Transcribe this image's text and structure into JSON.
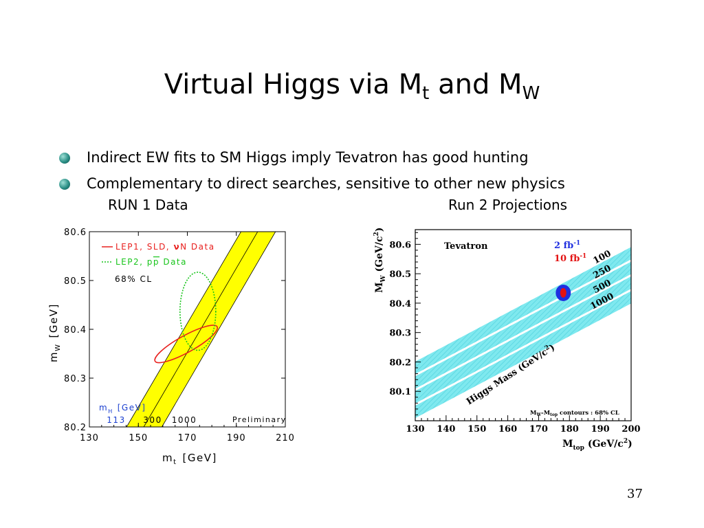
{
  "slide": {
    "title_main": "Virtual Higgs via M",
    "title_sub1": "t",
    "title_mid": " and M",
    "title_sub2": "W",
    "bullets": [
      {
        "text": "Indirect EW fits to SM Higgs imply Tevatron has good hunting",
        "icon": "teal-sphere-bullet-icon"
      },
      {
        "text": "Complementary to direct searches, sensitive to other new physics",
        "icon": "teal-sphere-bullet-icon"
      }
    ],
    "caption_left": "RUN 1 Data",
    "caption_right": "Run 2 Projections",
    "page_number": "37"
  },
  "chart_data": [
    {
      "type": "line",
      "xlabel_main": "m",
      "xlabel_sub": "t",
      "xlabel_unit": "[GeV]",
      "ylabel_main": "m",
      "ylabel_sub": "W",
      "ylabel_unit": "[GeV]",
      "xlim": [
        130,
        210
      ],
      "ylim": [
        80.2,
        80.6
      ],
      "xticks": [
        "130",
        "150",
        "170",
        "190",
        "210"
      ],
      "yticks": [
        "80.6",
        "80.5",
        "80.4",
        "80.3",
        "80.2"
      ],
      "legend": [
        {
          "label_pre": "LEP1, SLD, ",
          "label_nu": "ν",
          "label_post": "N Data",
          "color": "#e8201e",
          "style": "solid"
        },
        {
          "label_pre": "LEP2, p",
          "label_pbar": "p",
          "label_post": " Data",
          "color": "#17c41a",
          "style": "dotted"
        }
      ],
      "cl_label": "68% CL",
      "band_title_main": "m",
      "band_title_sub": "H",
      "band_title_unit": "[GeV]",
      "band_values": [
        "113",
        "300",
        "1000"
      ],
      "preliminary_label": "Preliminary",
      "band_color": "#ffff00",
      "band_lines": [
        {
          "mH": "113",
          "points": [
            [
              159.6,
              80.2
            ],
            [
              206.0,
              80.6
            ]
          ]
        },
        {
          "mH": "300",
          "points": [
            [
              152.2,
              80.2
            ],
            [
              198.7,
              80.6
            ]
          ]
        },
        {
          "mH": "1000",
          "points": [
            [
              145.2,
              80.2
            ],
            [
              191.9,
              80.6
            ]
          ]
        }
      ],
      "series": [
        {
          "name": "LEP1, SLD, νN Data",
          "shape": "ellipse",
          "center": [
            169.5,
            80.37
          ],
          "radii": [
            14.5,
            0.019
          ],
          "rotation_deg": -29,
          "color": "#e8201e",
          "style": "solid"
        },
        {
          "name": "LEP2, pp Data",
          "shape": "ellipse",
          "center": [
            174.3,
            80.437
          ],
          "radii": [
            7.3,
            0.08
          ],
          "rotation_deg": 0,
          "color": "#17c41a",
          "style": "dotted"
        }
      ]
    },
    {
      "type": "line",
      "title": "Tevatron",
      "xlabel_main": "M",
      "xlabel_sub": "top",
      "xlabel_unit": " (GeV/c",
      "xlabel_sup": "2",
      "xlabel_end": ")",
      "ylabel_main": "M",
      "ylabel_sub": "W",
      "ylabel_unit": " (GeV/c",
      "ylabel_sup": "2",
      "ylabel_end": ")",
      "xlim": [
        130,
        200
      ],
      "ylim": [
        80.0,
        80.65
      ],
      "xticks": [
        "130",
        "140",
        "150",
        "160",
        "170",
        "180",
        "190",
        "200"
      ],
      "yticks": [
        "80.6",
        "80.5",
        "80.4",
        "80.3",
        "80.2",
        "80.1"
      ],
      "legend": [
        {
          "label": "2 fb",
          "sup": "-1",
          "color": "#1f2fe0"
        },
        {
          "label": "10 fb",
          "sup": "-1",
          "color": "#e31212"
        }
      ],
      "band_color": "#7fe9ef",
      "band_label_main": "Higgs Mass (GeV/c",
      "band_label_sup": "2",
      "band_label_end": ")",
      "contours_note_a": "M",
      "contours_note_a_sub": "W",
      "contours_note_b": "-M",
      "contours_note_b_sub": "top",
      "contours_note_c": " contours : 68% CL",
      "point": {
        "x": 178.0,
        "y": 80.435,
        "color_outer": "#1f2fe0",
        "color_inner": "#e31212"
      },
      "series": [
        {
          "name": "100",
          "points": [
            [
              130,
              80.18
            ],
            [
              200,
              80.57
            ]
          ]
        },
        {
          "name": "250",
          "points": [
            [
              130,
              80.13
            ],
            [
              200,
              80.52
            ]
          ]
        },
        {
          "name": "500",
          "points": [
            [
              130,
              80.08
            ],
            [
              200,
              80.47
            ]
          ]
        },
        {
          "name": "1000",
          "points": [
            [
              130,
              80.03
            ],
            [
              200,
              80.42
            ]
          ]
        }
      ]
    }
  ]
}
